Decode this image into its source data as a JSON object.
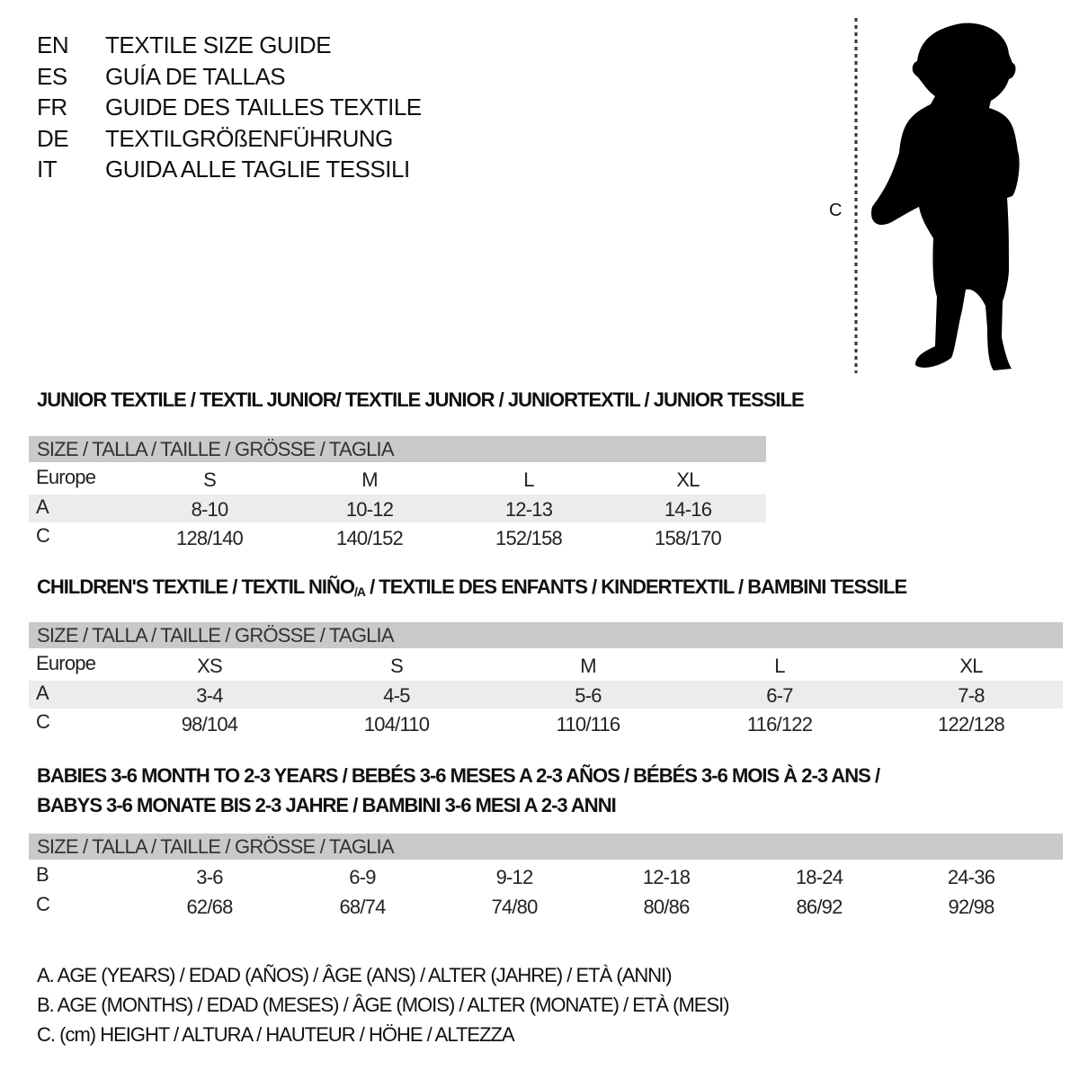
{
  "languages": [
    {
      "code": "EN",
      "text": "TEXTILE SIZE GUIDE"
    },
    {
      "code": "ES",
      "text": "GUÍA DE TALLAS"
    },
    {
      "code": "FR",
      "text": "GUIDE DES TAILLES TEXTILE"
    },
    {
      "code": "DE",
      "text": "TEXTILGRÖßENFÜHRUNG"
    },
    {
      "code": "IT",
      "text": "GUIDA ALLE TAGLIE TESSILI"
    }
  ],
  "figure": {
    "measure_label": "C",
    "icon": "child-silhouette"
  },
  "header_label": "SIZE / TALLA / TAILLE / GRÖSSE / TAGLIA",
  "junior": {
    "title": "JUNIOR TEXTILE / TEXTIL JUNIOR/ TEXTILE JUNIOR / JUNIORTEXTIL / JUNIOR TESSILE",
    "rows": [
      {
        "label": "Europe",
        "values": [
          "S",
          "M",
          "L",
          "XL"
        ]
      },
      {
        "label": "A",
        "values": [
          "8-10",
          "10-12",
          "12-13",
          "14-16"
        ]
      },
      {
        "label": "C",
        "values": [
          "128/140",
          "140/152",
          "152/158",
          "158/170"
        ]
      }
    ]
  },
  "children": {
    "title_before": "CHILDREN'S TEXTILE / TEXTIL NIÑO",
    "title_sub": "/A",
    "title_after": " / TEXTILE DES ENFANTS / KINDERTEXTIL / BAMBINI TESSILE",
    "rows": [
      {
        "label": "Europe",
        "values": [
          "XS",
          "S",
          "M",
          "L",
          "XL"
        ]
      },
      {
        "label": "A",
        "values": [
          "3-4",
          "4-5",
          "5-6",
          "6-7",
          "7-8"
        ]
      },
      {
        "label": "C",
        "values": [
          "98/104",
          "104/110",
          "110/116",
          "116/122",
          "122/128"
        ]
      }
    ]
  },
  "babies": {
    "title_line1": "BABIES 3-6 MONTH TO 2-3 YEARS / BEBÉS 3-6 MESES A 2-3 AÑOS / BÉBÉS 3-6 MOIS À 2-3 ANS /",
    "title_line2": "BABYS 3-6 MONATE BIS 2-3 JAHRE / BAMBINI 3-6 MESI A 2-3 ANNI",
    "rows": [
      {
        "label": "B",
        "values": [
          "3-6",
          "6-9",
          "9-12",
          "12-18",
          "18-24",
          "24-36"
        ]
      },
      {
        "label": "C",
        "values": [
          "62/68",
          "68/74",
          "74/80",
          "80/86",
          "86/92",
          "92/98"
        ]
      }
    ]
  },
  "legend": [
    "A. AGE (YEARS) / EDAD (AÑOS) / ÂGE (ANS) / ALTER (JAHRE) / ETÀ (ANNI)",
    "B. AGE (MONTHS) / EDAD (MESES) / ÂGE (MOIS) / ALTER (MONATE) / ETÀ (MESI)",
    "C. (cm) HEIGHT / ALTURA / HAUTEUR / HÖHE / ALTEZZA"
  ],
  "colors": {
    "header_bar": "#c9c9c9",
    "shaded_row": "#ececec",
    "text": "#111111"
  }
}
